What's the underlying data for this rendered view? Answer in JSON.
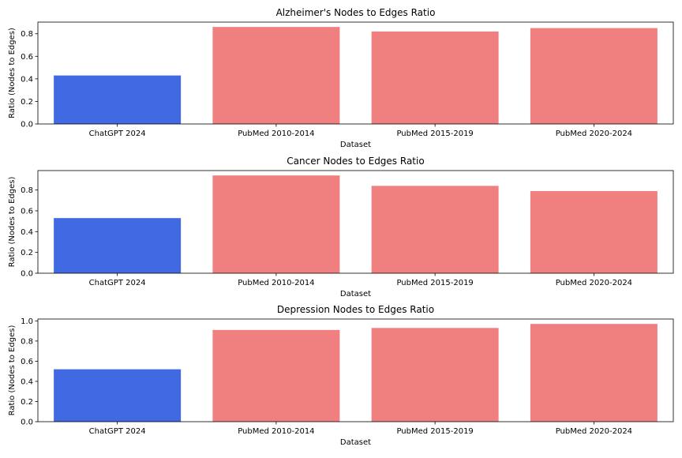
{
  "colors": {
    "chatgpt": "#4169e1",
    "pubmed": "#f08080",
    "axis": "#000000"
  },
  "chart_data": [
    {
      "type": "bar",
      "title": "Alzheimer's Nodes to Edges Ratio",
      "xlabel": "Dataset",
      "ylabel": "Ratio (Nodes to Edges)",
      "categories": [
        "ChatGPT 2024",
        "PubMed 2010-2014",
        "PubMed 2015-2019",
        "PubMed 2020-2024"
      ],
      "values": [
        0.43,
        0.86,
        0.82,
        0.85
      ],
      "ylim": [
        0,
        0.903
      ],
      "yticks": [
        0.0,
        0.2,
        0.4,
        0.6,
        0.8
      ],
      "ytick_labels": [
        "0.0",
        "0.2",
        "0.4",
        "0.6",
        "0.8"
      ],
      "grid": false,
      "legend": "none"
    },
    {
      "type": "bar",
      "title": "Cancer Nodes to Edges Ratio",
      "xlabel": "Dataset",
      "ylabel": "Ratio (Nodes to Edges)",
      "categories": [
        "ChatGPT 2024",
        "PubMed 2010-2014",
        "PubMed 2015-2019",
        "PubMed 2020-2024"
      ],
      "values": [
        0.53,
        0.94,
        0.84,
        0.79
      ],
      "ylim": [
        0,
        0.987
      ],
      "yticks": [
        0.0,
        0.2,
        0.4,
        0.6,
        0.8
      ],
      "ytick_labels": [
        "0.0",
        "0.2",
        "0.4",
        "0.6",
        "0.8"
      ],
      "grid": false,
      "legend": "none"
    },
    {
      "type": "bar",
      "title": "Depression Nodes to Edges Ratio",
      "xlabel": "Dataset",
      "ylabel": "Ratio (Nodes to Edges)",
      "categories": [
        "ChatGPT 2024",
        "PubMed 2010-2014",
        "PubMed 2015-2019",
        "PubMed 2020-2024"
      ],
      "values": [
        0.52,
        0.91,
        0.93,
        0.97
      ],
      "ylim": [
        0,
        1.0185
      ],
      "yticks": [
        0.0,
        0.2,
        0.4,
        0.6,
        0.8,
        1.0
      ],
      "ytick_labels": [
        "0.0",
        "0.2",
        "0.4",
        "0.6",
        "0.8",
        "1.0"
      ],
      "grid": false,
      "legend": "none"
    }
  ]
}
